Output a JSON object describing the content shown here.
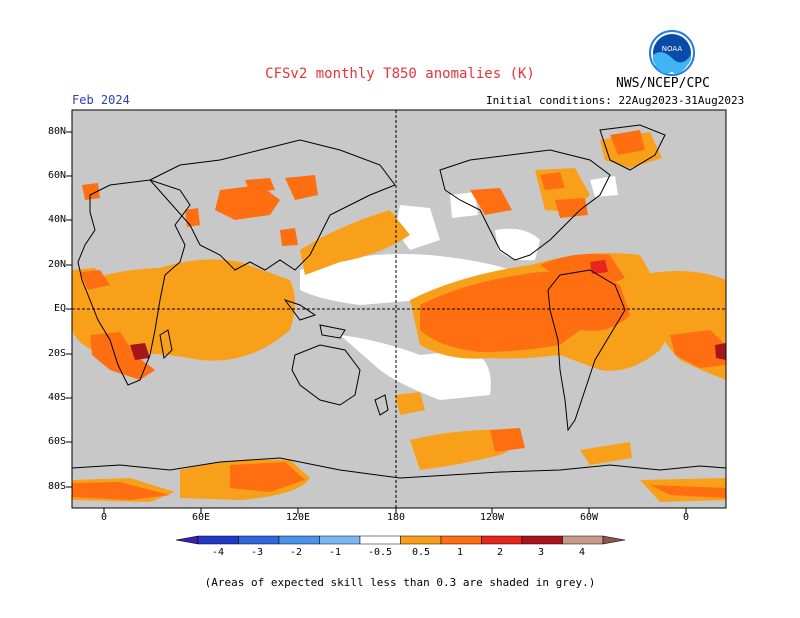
{
  "header": {
    "title": "CFSv2 monthly T850 anomalies (K)",
    "org": "NWS/NCEP/CPC",
    "valid_month": "Feb 2024",
    "initial_conditions": "Initial conditions: 22Aug2023-31Aug2023",
    "logo_text": "NOAA"
  },
  "map": {
    "lat_ticks": [
      "80N",
      "60N",
      "40N",
      "20N",
      "EQ",
      "20S",
      "40S",
      "60S",
      "80S"
    ],
    "lon_ticks": [
      "0",
      "60E",
      "120E",
      "180",
      "120W",
      "60W",
      "0"
    ],
    "grey_color": "#c8c8c8"
  },
  "colorbar": {
    "labels": [
      "-4",
      "-3",
      "-2",
      "-1",
      "-0.5",
      "0.5",
      "1",
      "2",
      "3",
      "4"
    ],
    "colors": [
      "#3a1fb0",
      "#2438c8",
      "#2f66dc",
      "#4a92ea",
      "#7bb8f2",
      "#ffffff",
      "#f9a01b",
      "#ff6e10",
      "#e5261d",
      "#a8141b",
      "#c99a8a",
      "#8b5548"
    ]
  },
  "footnote": "(Areas of expected skill less than 0.3 are shaded in grey.)"
}
